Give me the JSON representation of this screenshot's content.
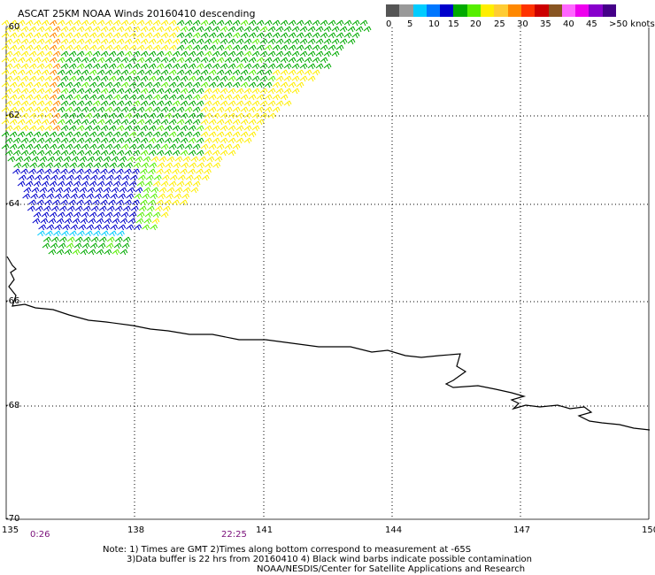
{
  "title": "ASCAT 25KM NOAA Winds 20160410 descending",
  "legend": {
    "labels": [
      "0",
      "5",
      "10",
      "15",
      "20",
      "25",
      "30",
      "35",
      "40",
      "45",
      ">50 knots"
    ],
    "colors": [
      "#555555",
      "#999999",
      "#00ccff",
      "#0077ff",
      "#0000cc",
      "#00aa00",
      "#55ee00",
      "#ffee00",
      "#ffcc33",
      "#ff8800",
      "#ff3300",
      "#cc0000",
      "#885522",
      "#ff66ff",
      "#ee00ee",
      "#8800cc",
      "#440088"
    ]
  },
  "latitudes": [
    "-60",
    "-62",
    "-64",
    "-66",
    "-68",
    "-70"
  ],
  "longitudes": [
    "135",
    "138",
    "141",
    "144",
    "147",
    "150"
  ],
  "times": [
    "0:26",
    "22:25"
  ],
  "notes": [
    "Note: 1) Times are GMT 2)Times along bottom correspond to measurement at -65S",
    "3)Data buffer is 22 hrs from 20160410 4) Black wind barbs indicate possible contamination",
    "NOAA/NESDIS/Center for Satellite Applications and Research"
  ],
  "wind_colors": {
    "yellow": "#ffee00",
    "orange": "#ff8800",
    "green": "#00aa00",
    "light_green": "#55ee00",
    "blue": "#0000cc",
    "cyan": "#00ccff"
  }
}
